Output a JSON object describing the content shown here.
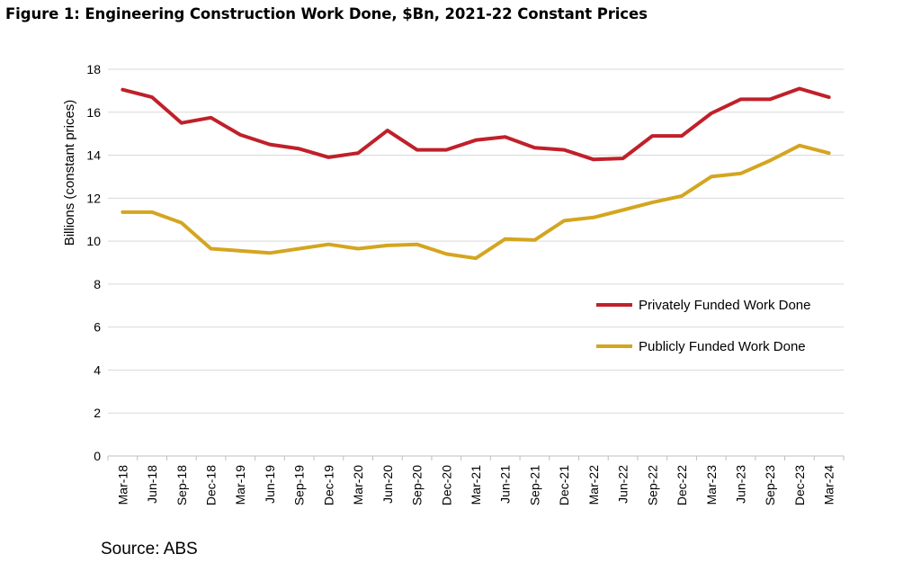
{
  "figure": {
    "title": "Figure 1: Engineering Construction Work Done, $Bn, 2021-22 Constant Prices",
    "source": "Source: ABS"
  },
  "chart_data": {
    "type": "line",
    "title": "Figure 1: Engineering Construction Work Done, $Bn, 2021-22 Constant Prices",
    "xlabel": "",
    "ylabel": "Billions (constant prices)",
    "ylim": [
      0,
      18
    ],
    "yticks": [
      0,
      2,
      4,
      6,
      8,
      10,
      12,
      14,
      16,
      18
    ],
    "grid": "horizontal",
    "legend_position": "right-middle",
    "categories": [
      "Mar-18",
      "Jun-18",
      "Sep-18",
      "Dec-18",
      "Mar-19",
      "Jun-19",
      "Sep-19",
      "Dec-19",
      "Mar-20",
      "Jun-20",
      "Sep-20",
      "Dec-20",
      "Mar-21",
      "Jun-21",
      "Sep-21",
      "Dec-21",
      "Mar-22",
      "Jun-22",
      "Sep-22",
      "Dec-22",
      "Mar-23",
      "Jun-23",
      "Sep-23",
      "Dec-23",
      "Mar-24"
    ],
    "series": [
      {
        "name": "Privately Funded Work Done",
        "color": "#C0202A",
        "values": [
          17.05,
          16.7,
          15.5,
          15.75,
          14.95,
          14.5,
          14.3,
          13.9,
          14.1,
          15.15,
          14.25,
          14.25,
          14.7,
          14.85,
          14.35,
          14.25,
          13.8,
          13.85,
          14.9,
          14.9,
          15.95,
          16.6,
          16.6,
          17.1,
          16.7
        ]
      },
      {
        "name": "Publicly Funded Work Done",
        "color": "#D4A520",
        "values": [
          11.35,
          11.35,
          10.85,
          9.65,
          9.55,
          9.45,
          9.65,
          9.85,
          9.65,
          9.8,
          9.85,
          9.4,
          9.2,
          10.1,
          10.05,
          10.95,
          11.1,
          11.45,
          11.8,
          12.1,
          13.0,
          13.15,
          13.75,
          14.45,
          14.1
        ]
      }
    ]
  }
}
